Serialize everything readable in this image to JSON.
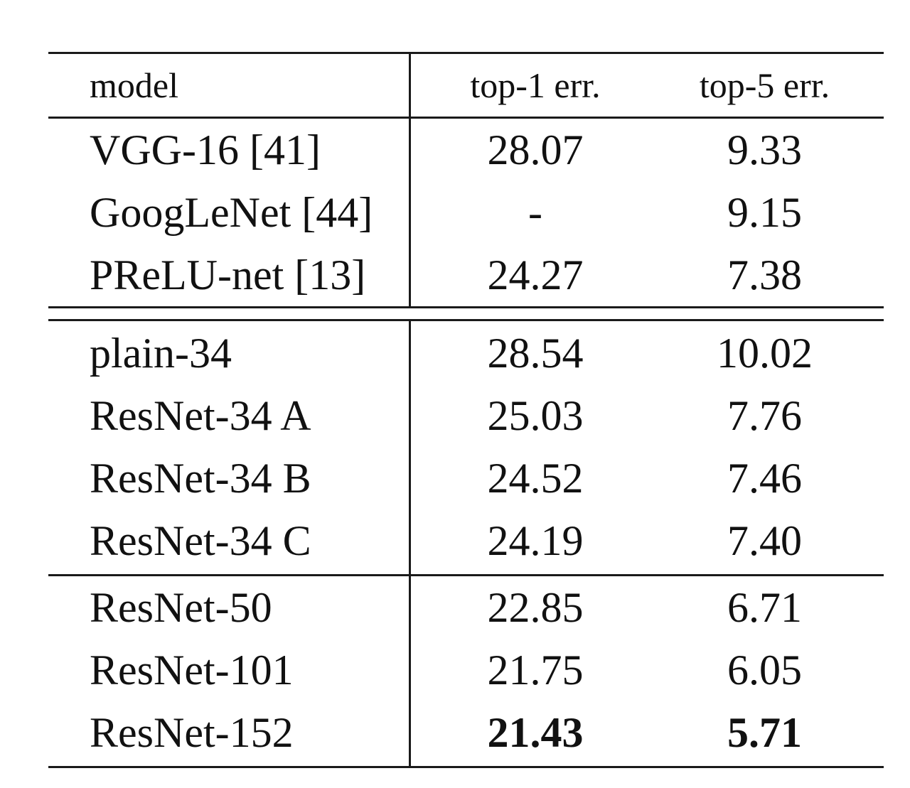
{
  "table": {
    "headers": {
      "model": "model",
      "top1": "top-1 err.",
      "top5": "top-5 err."
    },
    "rows": [
      {
        "model": "VGG-16 [41]",
        "top1": "28.07",
        "top5": "9.33",
        "bold": false
      },
      {
        "model": "GoogLeNet [44]",
        "top1": "-",
        "top5": "9.15",
        "bold": false
      },
      {
        "model": "PReLU-net [13]",
        "top1": "24.27",
        "top5": "7.38",
        "bold": false
      },
      {
        "model": "plain-34",
        "top1": "28.54",
        "top5": "10.02",
        "bold": false
      },
      {
        "model": "ResNet-34 A",
        "top1": "25.03",
        "top5": "7.76",
        "bold": false
      },
      {
        "model": "ResNet-34 B",
        "top1": "24.52",
        "top5": "7.46",
        "bold": false
      },
      {
        "model": "ResNet-34 C",
        "top1": "24.19",
        "top5": "7.40",
        "bold": false
      },
      {
        "model": "ResNet-50",
        "top1": "22.85",
        "top5": "6.71",
        "bold": false
      },
      {
        "model": "ResNet-101",
        "top1": "21.75",
        "top5": "6.05",
        "bold": false
      },
      {
        "model": "ResNet-152",
        "top1": "21.43",
        "top5": "5.71",
        "bold": true
      }
    ]
  }
}
